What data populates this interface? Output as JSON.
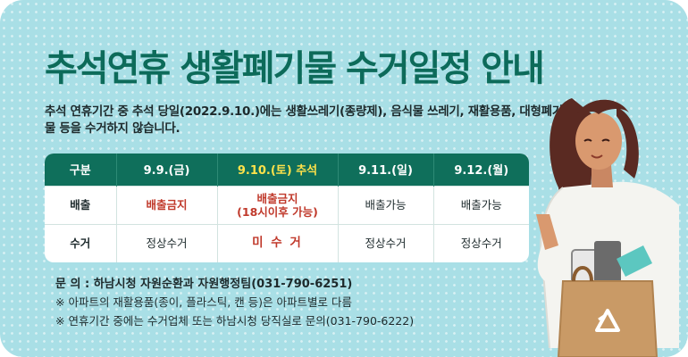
{
  "title": "추석연휴 생활폐기물 수거일정 안내",
  "description": "추석 연휴기간 중 추석 당일(2022.9.10.)에는 생활쓰레기(종량제), 음식물 쓰레기, 재활용품, 대형폐기물 등을 수거하지 않습니다.",
  "table": {
    "headers": [
      "구분",
      "9.9.(금)",
      "9.10.(토) 추석",
      "9.11.(일)",
      "9.12.(월)"
    ],
    "rows": [
      {
        "label": "배출",
        "cells": [
          "배출금지",
          "배출금지\n(18시이후 가능)",
          "배출가능",
          "배출가능"
        ]
      },
      {
        "label": "수거",
        "cells": [
          "정상수거",
          "미 수 거",
          "정상수거",
          "정상수거"
        ]
      }
    ]
  },
  "contact": "문 의 : 하남시청 자원순환과 자원행정팀(031-790-6251)",
  "notes": [
    "※ 아파트의 재활용품(종이, 플라스틱, 캔 등)은 아파트별로 다름",
    "※ 연휴기간 중에는 수거업체 또는 하남시청 당직실로 문의(031-790-6222)"
  ],
  "colors": {
    "background": "#a9dfe6",
    "title": "#0d6b5a",
    "table_header": "#0f6f5b",
    "highlight": "#ffe24a",
    "warning": "#c0392b"
  },
  "icons": [
    "recycle-icon"
  ]
}
